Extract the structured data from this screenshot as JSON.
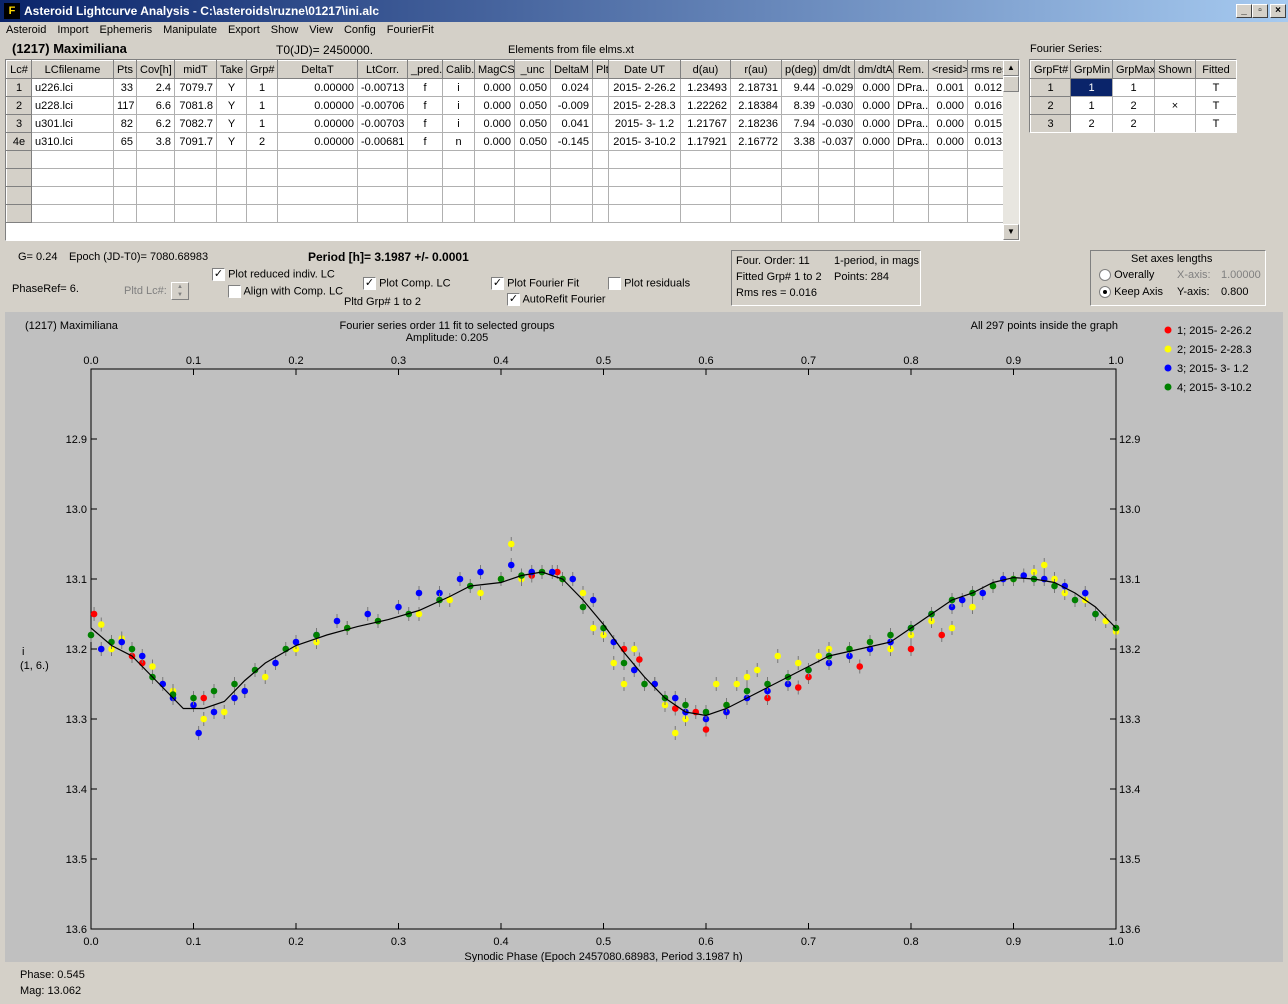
{
  "window": {
    "title": "Asteroid Lightcurve Analysis - C:\\asteroids\\ruzne\\01217\\ini.alc",
    "min": "_",
    "max": "▫",
    "close": "×"
  },
  "menu": [
    "Asteroid",
    "Import",
    "Ephemeris",
    "Manipulate",
    "Export",
    "Show",
    "View",
    "Config",
    "FourierFit"
  ],
  "header": {
    "asteroid": "(1217) Maximiliana",
    "t0": "T0(JD)= 2450000.",
    "elements": "Elements from file elms.xt",
    "fourier_series": "Fourier Series:"
  },
  "lc_table": {
    "columns": [
      "Lc#",
      "LCfilename",
      "Pts",
      "Cov[h]",
      "midT",
      "Take",
      "Grp#",
      "DeltaT",
      "LtCorr.",
      "_pred.",
      "Calib.",
      "MagCS",
      "_unc",
      "DeltaM",
      "Plt",
      "Date UT",
      "d(au)",
      "r(au)",
      "p(deg)",
      "dm/dt",
      "dm/dtA",
      "Rem.",
      "<resid>",
      "rms res"
    ],
    "rows": [
      [
        "1",
        "u226.lci",
        "33",
        "2.4",
        "7079.7",
        "Y",
        "1",
        "0.00000",
        "-0.00713",
        "f",
        "i",
        "0.000",
        "0.050",
        "0.024",
        "",
        "2015- 2-26.2",
        "1.23493",
        "2.18731",
        "9.44",
        "-0.029",
        "0.000",
        "DPra...",
        "0.001",
        "0.012"
      ],
      [
        "2",
        "u228.lci",
        "117",
        "6.6",
        "7081.8",
        "Y",
        "1",
        "0.00000",
        "-0.00706",
        "f",
        "i",
        "0.000",
        "0.050",
        "-0.009",
        "",
        "2015- 2-28.3",
        "1.22262",
        "2.18384",
        "8.39",
        "-0.030",
        "0.000",
        "DPra...",
        "0.000",
        "0.016"
      ],
      [
        "3",
        "u301.lci",
        "82",
        "6.2",
        "7082.7",
        "Y",
        "1",
        "0.00000",
        "-0.00703",
        "f",
        "i",
        "0.000",
        "0.050",
        "0.041",
        "",
        "2015- 3- 1.2",
        "1.21767",
        "2.18236",
        "7.94",
        "-0.030",
        "0.000",
        "DPra...",
        "0.000",
        "0.015"
      ],
      [
        "4e",
        "u310.lci",
        "65",
        "3.8",
        "7091.7",
        "Y",
        "2",
        "0.00000",
        "-0.00681",
        "f",
        "n",
        "0.000",
        "0.050",
        "-0.145",
        "",
        "2015- 3-10.2",
        "1.17921",
        "2.16772",
        "3.38",
        "-0.037",
        "0.000",
        "DPra...",
        "0.000",
        "0.013"
      ]
    ]
  },
  "fourier_table": {
    "columns": [
      "GrpFt#",
      "GrpMin",
      "GrpMax",
      "Shown",
      "Fitted"
    ],
    "rows": [
      [
        "1",
        "1",
        "1",
        "",
        "T"
      ],
      [
        "2",
        "1",
        "2",
        "×",
        "T"
      ],
      [
        "3",
        "2",
        "2",
        "",
        "T"
      ]
    ]
  },
  "controls": {
    "g": "G= 0.24",
    "epoch": "Epoch (JD-T0)= 7080.68983",
    "period": "Period [h]= 3.1987 +/- 0.0001",
    "phase_ref": "PhaseRef= 6.",
    "pltd_lc": "Pltd Lc#:",
    "plot_reduced": "Plot reduced indiv. LC",
    "align_comp": "Align with Comp. LC",
    "plot_comp": "Plot Comp. LC",
    "pltd_grp": "Pltd Grp#  1   to   2",
    "plot_fourier": "Plot Fourier Fit",
    "autorefit": "AutoRefit Fourier",
    "plot_residuals": "Plot residuals",
    "four_order": "Four. Order: 11",
    "one_period": "1-period, in mags",
    "fitted_grp": "Fitted Grp# 1 to 2",
    "points": "Points: 284",
    "rms": "Rms res     = 0.016",
    "axes_title": "Set axes lengths",
    "overally": "Overally",
    "keep_axis": "Keep Axis",
    "x_axis_label": "X-axis:",
    "x_axis_val": "1.00000",
    "y_axis_label": "Y-axis:",
    "y_axis_val": "0.800"
  },
  "chart_data": {
    "type": "scatter",
    "title": "Fourier series order 11 fit to selected groups",
    "subtitle": "Amplitude: 0.205",
    "top_left": "(1217) Maximiliana",
    "top_right": "All 297 points inside the graph",
    "xlabel": "Synodic Phase (Epoch 2457080.68983, Period 3.1987 h)",
    "ylabel": "i\n(1, 6.)",
    "xlim": [
      0,
      1
    ],
    "ylim": [
      13.6,
      12.8
    ],
    "x_ticks": [
      "0.0",
      "0.1",
      "0.2",
      "0.3",
      "0.4",
      "0.5",
      "0.6",
      "0.7",
      "0.8",
      "0.9",
      "1.0"
    ],
    "y_ticks": [
      "12.9",
      "13.0",
      "13.1",
      "13.2",
      "13.3",
      "13.4",
      "13.5",
      "13.6"
    ],
    "series": [
      {
        "name": "1; 2015- 2-26.2",
        "color": "#ff0000",
        "points": [
          [
            0.003,
            13.15
          ],
          [
            0.04,
            13.21
          ],
          [
            0.05,
            13.22
          ],
          [
            0.11,
            13.27
          ],
          [
            0.43,
            13.095
          ],
          [
            0.455,
            13.09
          ],
          [
            0.52,
            13.2
          ],
          [
            0.535,
            13.215
          ],
          [
            0.57,
            13.285
          ],
          [
            0.59,
            13.29
          ],
          [
            0.6,
            13.315
          ],
          [
            0.62,
            13.29
          ],
          [
            0.66,
            13.27
          ],
          [
            0.69,
            13.255
          ],
          [
            0.7,
            13.24
          ],
          [
            0.75,
            13.225
          ],
          [
            0.8,
            13.2
          ],
          [
            0.83,
            13.18
          ],
          [
            1.0,
            13.17
          ]
        ]
      },
      {
        "name": "2; 2015- 2-28.3",
        "color": "#ffff00",
        "points": [
          [
            0.01,
            13.165
          ],
          [
            0.02,
            13.2
          ],
          [
            0.03,
            13.185
          ],
          [
            0.06,
            13.225
          ],
          [
            0.08,
            13.26
          ],
          [
            0.1,
            13.28
          ],
          [
            0.11,
            13.3
          ],
          [
            0.13,
            13.29
          ],
          [
            0.15,
            13.26
          ],
          [
            0.17,
            13.24
          ],
          [
            0.2,
            13.2
          ],
          [
            0.22,
            13.19
          ],
          [
            0.25,
            13.17
          ],
          [
            0.28,
            13.16
          ],
          [
            0.32,
            13.15
          ],
          [
            0.35,
            13.13
          ],
          [
            0.38,
            13.12
          ],
          [
            0.4,
            13.1
          ],
          [
            0.41,
            13.05
          ],
          [
            0.42,
            13.1
          ],
          [
            0.44,
            13.09
          ],
          [
            0.46,
            13.1
          ],
          [
            0.48,
            13.12
          ],
          [
            0.49,
            13.17
          ],
          [
            0.5,
            13.18
          ],
          [
            0.51,
            13.22
          ],
          [
            0.52,
            13.25
          ],
          [
            0.53,
            13.2
          ],
          [
            0.55,
            13.25
          ],
          [
            0.56,
            13.28
          ],
          [
            0.57,
            13.32
          ],
          [
            0.58,
            13.3
          ],
          [
            0.6,
            13.3
          ],
          [
            0.61,
            13.25
          ],
          [
            0.62,
            13.28
          ],
          [
            0.63,
            13.25
          ],
          [
            0.64,
            13.24
          ],
          [
            0.65,
            13.23
          ],
          [
            0.67,
            13.21
          ],
          [
            0.69,
            13.22
          ],
          [
            0.71,
            13.21
          ],
          [
            0.72,
            13.2
          ],
          [
            0.74,
            13.2
          ],
          [
            0.76,
            13.19
          ],
          [
            0.78,
            13.2
          ],
          [
            0.8,
            13.18
          ],
          [
            0.82,
            13.16
          ],
          [
            0.84,
            13.17
          ],
          [
            0.86,
            13.14
          ],
          [
            0.88,
            13.11
          ],
          [
            0.9,
            13.1
          ],
          [
            0.92,
            13.09
          ],
          [
            0.93,
            13.08
          ],
          [
            0.94,
            13.1
          ],
          [
            0.95,
            13.12
          ],
          [
            0.97,
            13.13
          ],
          [
            0.99,
            13.16
          ],
          [
            1.0,
            13.175
          ]
        ]
      },
      {
        "name": "3; 2015- 3- 1.2",
        "color": "#0000ff",
        "points": [
          [
            0.01,
            13.2
          ],
          [
            0.03,
            13.19
          ],
          [
            0.05,
            13.21
          ],
          [
            0.07,
            13.25
          ],
          [
            0.08,
            13.27
          ],
          [
            0.1,
            13.28
          ],
          [
            0.105,
            13.32
          ],
          [
            0.12,
            13.29
          ],
          [
            0.14,
            13.27
          ],
          [
            0.15,
            13.26
          ],
          [
            0.18,
            13.22
          ],
          [
            0.2,
            13.19
          ],
          [
            0.22,
            13.18
          ],
          [
            0.24,
            13.16
          ],
          [
            0.27,
            13.15
          ],
          [
            0.3,
            13.14
          ],
          [
            0.32,
            13.12
          ],
          [
            0.34,
            13.12
          ],
          [
            0.36,
            13.1
          ],
          [
            0.38,
            13.09
          ],
          [
            0.41,
            13.08
          ],
          [
            0.43,
            13.09
          ],
          [
            0.45,
            13.09
          ],
          [
            0.47,
            13.1
          ],
          [
            0.49,
            13.13
          ],
          [
            0.51,
            13.19
          ],
          [
            0.53,
            13.23
          ],
          [
            0.55,
            13.25
          ],
          [
            0.57,
            13.27
          ],
          [
            0.58,
            13.29
          ],
          [
            0.6,
            13.3
          ],
          [
            0.62,
            13.29
          ],
          [
            0.64,
            13.27
          ],
          [
            0.66,
            13.26
          ],
          [
            0.68,
            13.25
          ],
          [
            0.7,
            13.23
          ],
          [
            0.72,
            13.22
          ],
          [
            0.74,
            13.21
          ],
          [
            0.76,
            13.2
          ],
          [
            0.78,
            13.19
          ],
          [
            0.8,
            13.17
          ],
          [
            0.82,
            13.15
          ],
          [
            0.84,
            13.14
          ],
          [
            0.85,
            13.13
          ],
          [
            0.87,
            13.12
          ],
          [
            0.89,
            13.1
          ],
          [
            0.91,
            13.095
          ],
          [
            0.93,
            13.1
          ],
          [
            0.95,
            13.11
          ],
          [
            0.97,
            13.12
          ],
          [
            0.98,
            13.15
          ]
        ]
      },
      {
        "name": "4; 2015- 3-10.2",
        "color": "#008000",
        "points": [
          [
            0.0,
            13.18
          ],
          [
            0.02,
            13.19
          ],
          [
            0.04,
            13.2
          ],
          [
            0.06,
            13.24
          ],
          [
            0.08,
            13.265
          ],
          [
            0.1,
            13.27
          ],
          [
            0.12,
            13.26
          ],
          [
            0.14,
            13.25
          ],
          [
            0.16,
            13.23
          ],
          [
            0.19,
            13.2
          ],
          [
            0.22,
            13.18
          ],
          [
            0.25,
            13.17
          ],
          [
            0.28,
            13.16
          ],
          [
            0.31,
            13.15
          ],
          [
            0.34,
            13.13
          ],
          [
            0.37,
            13.11
          ],
          [
            0.4,
            13.1
          ],
          [
            0.42,
            13.095
          ],
          [
            0.44,
            13.09
          ],
          [
            0.46,
            13.1
          ],
          [
            0.48,
            13.14
          ],
          [
            0.5,
            13.17
          ],
          [
            0.52,
            13.22
          ],
          [
            0.54,
            13.25
          ],
          [
            0.56,
            13.27
          ],
          [
            0.58,
            13.28
          ],
          [
            0.6,
            13.29
          ],
          [
            0.62,
            13.28
          ],
          [
            0.64,
            13.26
          ],
          [
            0.66,
            13.25
          ],
          [
            0.68,
            13.24
          ],
          [
            0.7,
            13.23
          ],
          [
            0.72,
            13.21
          ],
          [
            0.74,
            13.2
          ],
          [
            0.76,
            13.19
          ],
          [
            0.78,
            13.18
          ],
          [
            0.8,
            13.17
          ],
          [
            0.82,
            13.15
          ],
          [
            0.84,
            13.13
          ],
          [
            0.86,
            13.12
          ],
          [
            0.88,
            13.11
          ],
          [
            0.9,
            13.1
          ],
          [
            0.92,
            13.1
          ],
          [
            0.94,
            13.11
          ],
          [
            0.96,
            13.13
          ],
          [
            0.98,
            13.15
          ],
          [
            1.0,
            13.17
          ]
        ]
      }
    ],
    "fit_curve": [
      [
        0.0,
        13.17
      ],
      [
        0.02,
        13.195
      ],
      [
        0.04,
        13.21
      ],
      [
        0.06,
        13.24
      ],
      [
        0.08,
        13.27
      ],
      [
        0.09,
        13.285
      ],
      [
        0.11,
        13.285
      ],
      [
        0.13,
        13.275
      ],
      [
        0.15,
        13.245
      ],
      [
        0.17,
        13.22
      ],
      [
        0.2,
        13.195
      ],
      [
        0.23,
        13.18
      ],
      [
        0.26,
        13.168
      ],
      [
        0.29,
        13.158
      ],
      [
        0.32,
        13.145
      ],
      [
        0.35,
        13.125
      ],
      [
        0.37,
        13.11
      ],
      [
        0.4,
        13.105
      ],
      [
        0.42,
        13.095
      ],
      [
        0.44,
        13.09
      ],
      [
        0.46,
        13.1
      ],
      [
        0.48,
        13.13
      ],
      [
        0.5,
        13.165
      ],
      [
        0.52,
        13.205
      ],
      [
        0.54,
        13.24
      ],
      [
        0.56,
        13.27
      ],
      [
        0.58,
        13.29
      ],
      [
        0.6,
        13.295
      ],
      [
        0.62,
        13.285
      ],
      [
        0.64,
        13.27
      ],
      [
        0.66,
        13.255
      ],
      [
        0.68,
        13.24
      ],
      [
        0.7,
        13.225
      ],
      [
        0.72,
        13.21
      ],
      [
        0.75,
        13.2
      ],
      [
        0.78,
        13.19
      ],
      [
        0.8,
        13.17
      ],
      [
        0.82,
        13.15
      ],
      [
        0.84,
        13.13
      ],
      [
        0.86,
        13.12
      ],
      [
        0.88,
        13.105
      ],
      [
        0.9,
        13.098
      ],
      [
        0.92,
        13.1
      ],
      [
        0.94,
        13.105
      ],
      [
        0.96,
        13.12
      ],
      [
        0.98,
        13.14
      ],
      [
        1.0,
        13.17
      ]
    ],
    "legend_position": "right",
    "grid": false
  },
  "status": {
    "phase": "Phase:  0.545",
    "mag": "Mag:    13.062"
  }
}
